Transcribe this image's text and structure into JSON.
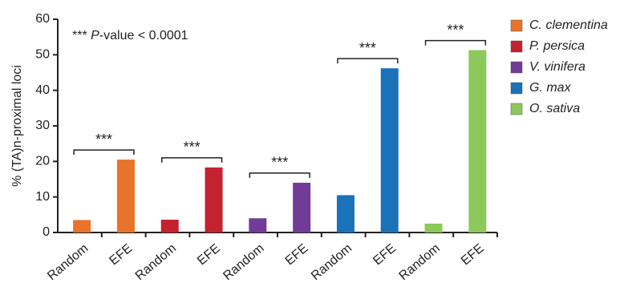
{
  "chart_data": {
    "type": "bar",
    "y_label": "% (TA)n-proximal loci",
    "annotation": [
      "*** ",
      "P",
      "-value < 0.0001"
    ],
    "categories": [
      "Random",
      "EFE"
    ],
    "ylim": [
      0,
      60
    ],
    "yticks": [
      0,
      10,
      20,
      30,
      40,
      50,
      60
    ],
    "series": [
      {
        "name": "C. clementina",
        "color": "#e8732a",
        "values": [
          3.5,
          20.5
        ],
        "significance": "***"
      },
      {
        "name": "P. persica",
        "color": "#c4222f",
        "values": [
          3.6,
          18.3
        ],
        "significance": "***"
      },
      {
        "name": "V. vinifera",
        "color": "#703c97",
        "values": [
          4,
          14
        ],
        "significance": "***"
      },
      {
        "name": "G. max",
        "color": "#1a72b9",
        "values": [
          10.5,
          46.2
        ],
        "significance": "***"
      },
      {
        "name": "O. sativa",
        "color": "#8dc85a",
        "values": [
          2.5,
          51.3
        ],
        "significance": "***"
      }
    ]
  }
}
